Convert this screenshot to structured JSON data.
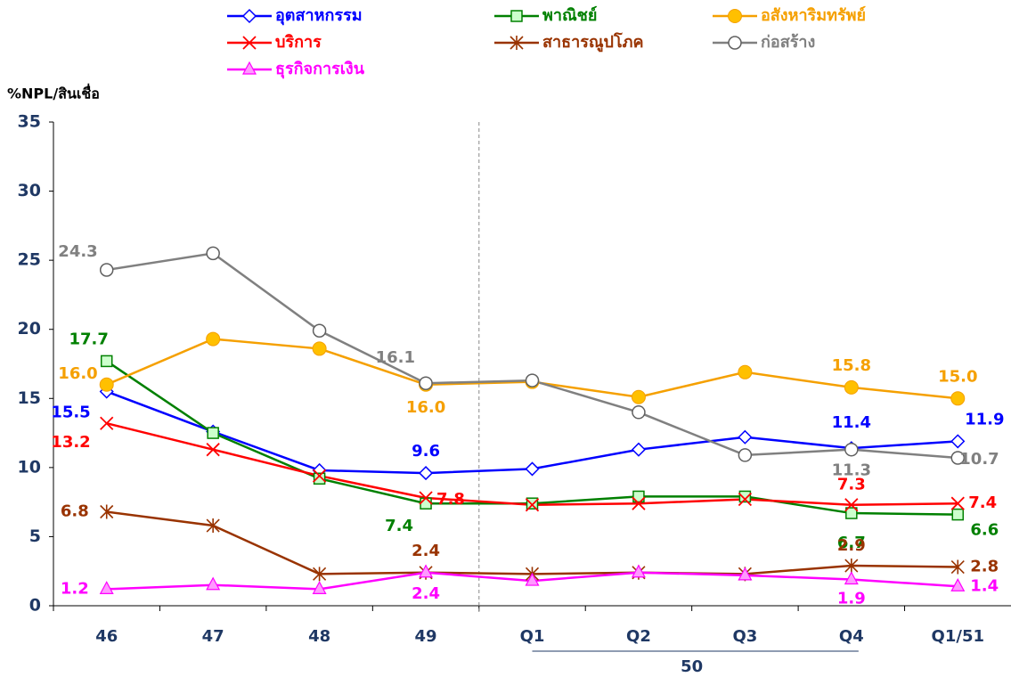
{
  "chart_data": {
    "type": "line",
    "y_label": "%NPL/สินเชื่อ",
    "categories": [
      "46",
      "47",
      "48",
      "49",
      "Q1",
      "Q2",
      "Q3",
      "Q4",
      "Q1/51"
    ],
    "group_label": "50",
    "ylim": [
      0,
      35
    ],
    "yticks": [
      0,
      5,
      10,
      15,
      20,
      25,
      30,
      35
    ],
    "series": [
      {
        "name": "อุตสาหกรรม",
        "color": "#0000ff",
        "marker": "diamond",
        "values": [
          15.5,
          12.6,
          9.8,
          9.6,
          9.9,
          11.3,
          12.2,
          11.4,
          11.9
        ],
        "value_labels": [
          "15.5",
          null,
          null,
          "9.6",
          null,
          null,
          null,
          "11.4",
          "11.9"
        ]
      },
      {
        "name": "พาณิชย์",
        "color": "#008000",
        "marker": "square",
        "values": [
          17.7,
          12.5,
          9.2,
          7.4,
          7.4,
          7.9,
          7.9,
          6.7,
          6.6
        ],
        "value_labels": [
          "17.7",
          null,
          null,
          "7.4",
          null,
          null,
          null,
          "6.7",
          "6.6"
        ]
      },
      {
        "name": "อสังหาริมทรัพย์",
        "color": "#f5a000",
        "marker": "dot",
        "values": [
          16.0,
          19.3,
          18.6,
          16.0,
          16.2,
          15.1,
          16.9,
          15.8,
          15.0
        ],
        "value_labels": [
          "16.0",
          null,
          null,
          "16.0",
          null,
          null,
          null,
          "15.8",
          "15.0"
        ]
      },
      {
        "name": "บริการ",
        "color": "#ff0000",
        "marker": "x",
        "values": [
          13.2,
          11.3,
          9.4,
          7.8,
          7.3,
          7.4,
          7.7,
          7.3,
          7.4
        ],
        "value_labels": [
          "13.2",
          null,
          null,
          "7.8",
          null,
          null,
          null,
          "7.3",
          "7.4"
        ]
      },
      {
        "name": "สาธารณูปโภค",
        "color": "#993300",
        "marker": "star",
        "values": [
          6.8,
          5.8,
          2.3,
          2.4,
          2.3,
          2.4,
          2.3,
          2.9,
          2.8
        ],
        "value_labels": [
          "6.8",
          null,
          null,
          "2.4",
          null,
          null,
          null,
          "2.9",
          "2.8"
        ]
      },
      {
        "name": "ก่อสร้าง",
        "color": "#808080",
        "marker": "circle",
        "values": [
          24.3,
          25.5,
          19.9,
          16.1,
          16.3,
          14.0,
          10.9,
          11.3,
          10.7
        ],
        "value_labels": [
          "24.3",
          null,
          null,
          "16.1",
          null,
          null,
          null,
          "11.3",
          "10.7"
        ]
      },
      {
        "name": "ธุรกิจการเงิน",
        "color": "#ff00ff",
        "marker": "triangle",
        "values": [
          1.2,
          1.5,
          1.2,
          2.4,
          1.8,
          2.4,
          2.2,
          1.9,
          1.4
        ],
        "value_labels": [
          "1.2",
          null,
          null,
          "2.4",
          null,
          null,
          null,
          "1.9",
          "1.4"
        ]
      }
    ]
  }
}
